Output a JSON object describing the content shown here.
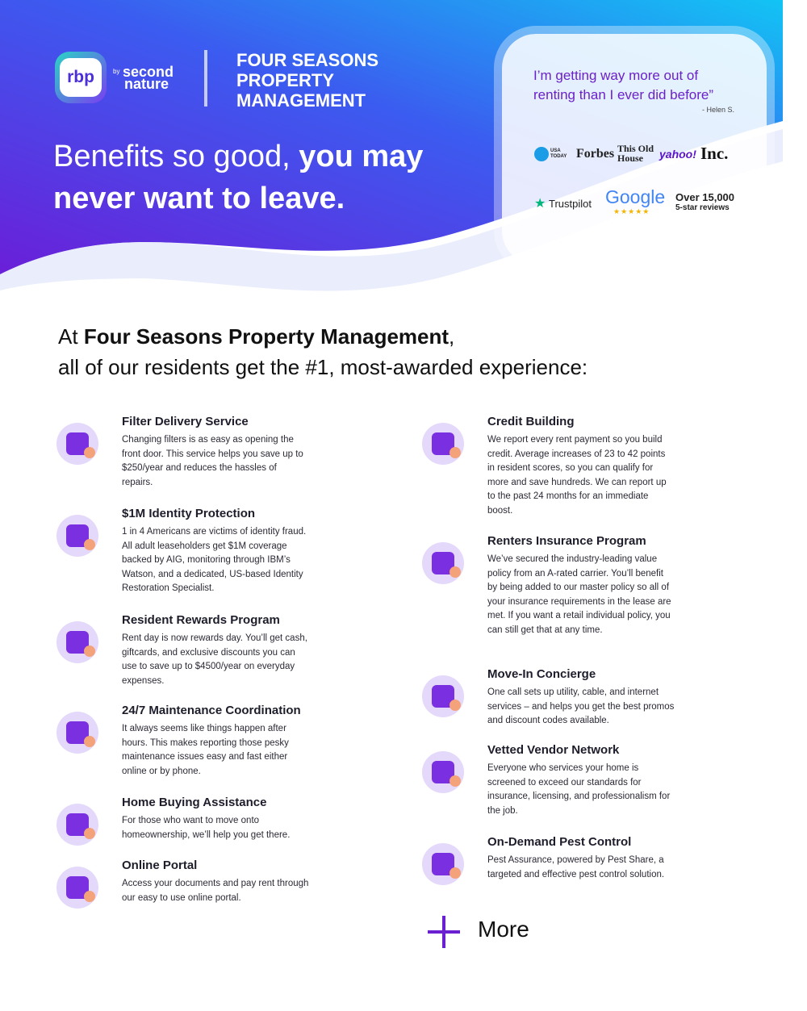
{
  "header": {
    "logo": "rbp",
    "by": "by",
    "brand_line1": "second",
    "brand_line2": "nature",
    "company_lines": [
      "FOUR SEASONS",
      "PROPERTY",
      "MANAGEMENT"
    ],
    "headline_line1_regular": "Benefits so good,",
    "headline_line1_bold": "you may",
    "headline_line2": "never want to leave."
  },
  "testimonial": {
    "quote": "I’m getting way more out of renting than I ever did before”",
    "author": "- Helen S.",
    "press": [
      "USA TODAY",
      "Forbes",
      "This Old House",
      "yahoo!",
      "Inc."
    ],
    "trustpilot": "Trustpilot",
    "google": "Google",
    "reviews_count": "Over 15,000",
    "reviews_label": "5-star reviews"
  },
  "intro": {
    "prefix": "At",
    "company": "Four Seasons Property Management",
    "suffix": ",",
    "line2": "all of our residents get the #1, most-awarded experience:"
  },
  "benefits_left": [
    {
      "title": "Filter Delivery Service",
      "description": "Changing filters is as easy as opening the front door. This service helps you save up to $250/year and reduces the hassles of repairs."
    },
    {
      "title": "$1M Identity Protection",
      "description": "1 in 4 Americans are victims of identity fraud. All adult leaseholders get $1M coverage backed by AIG, monitoring through IBM’s Watson, and a dedicated, US-based Identity Restoration Specialist."
    },
    {
      "title": "Resident Rewards Program",
      "description": "Rent day is now rewards day. You’ll get cash, giftcards, and exclusive discounts you can use to save up to $4500/year on everyday expenses."
    },
    {
      "title": "24/7 Maintenance Coordination",
      "description": "It always seems like things happen after hours. This makes reporting those pesky maintenance issues easy and fast either online or by phone."
    },
    {
      "title": "Home Buying Assistance",
      "description": "For those who want to move onto homeownership, we’ll help you get there."
    },
    {
      "title": "Online Portal",
      "description": "Access your documents and pay rent through our easy to use online portal."
    }
  ],
  "benefits_right": [
    {
      "title": "Credit Building",
      "description": "We report every rent payment so you build credit. Average increases of 23 to 42 points in resident scores, so you can qualify for more and save hundreds. We can report up to the past 24 months for an immediate boost."
    },
    {
      "title": "Renters Insurance Program",
      "description": "We’ve secured the industry-leading value policy from an A-rated carrier. You’ll benefit by being added to our master policy so all of your insurance requirements in the lease are met. If you want a retail individual policy, you can still get that at any time."
    },
    {
      "title": "Move-In Concierge",
      "description": "One call sets up utility, cable, and internet services – and helps you get the best promos and discount codes available."
    },
    {
      "title": "Vetted Vendor Network",
      "description": "Everyone who services your home is screened to exceed our standards for insurance, licensing, and professionalism for the job."
    },
    {
      "title": "On-Demand Pest Control",
      "description": "Pest Assurance, powered by Pest Share, a targeted and effective pest control solution."
    }
  ],
  "more": "More"
}
